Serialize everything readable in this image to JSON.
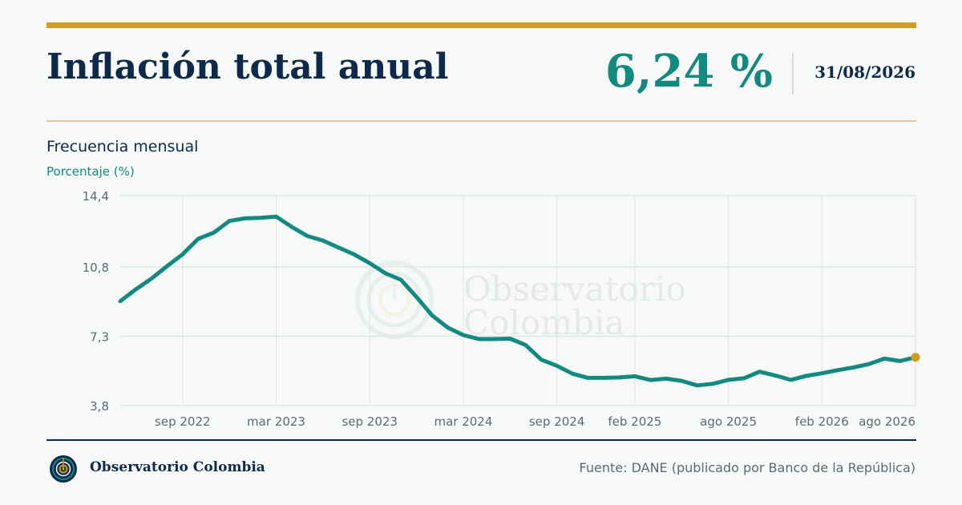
{
  "header": {
    "title": "Inflación total anual",
    "value": "6,24 %",
    "date": "31/08/2026"
  },
  "colors": {
    "gold": "#d19e1e",
    "teal": "#138a80",
    "navy": "#0d2a4a",
    "grid": "#dfe5e6",
    "tick": "#5c6a75"
  },
  "chart_data": {
    "type": "line",
    "subtitle": "Frecuencia mensual",
    "ylabel": "Porcentaje (%)",
    "ylim": [
      3.8,
      14.4
    ],
    "y_ticks": [
      "14,4",
      "10,8",
      "7,3",
      "3,8"
    ],
    "y_tick_values": [
      14.4,
      10.8,
      7.3,
      3.8
    ],
    "x_ticks": [
      "sep 2022",
      "mar 2023",
      "sep 2023",
      "mar 2024",
      "sep 2024",
      "feb 2025",
      "ago 2025",
      "feb 2026",
      "ago 2026"
    ],
    "x_tick_months": [
      4,
      10,
      16,
      22,
      28,
      33,
      39,
      45,
      51
    ],
    "x_months": [
      "may 2022",
      "jun 2022",
      "jul 2022",
      "ago 2022",
      "sep 2022",
      "oct 2022",
      "nov 2022",
      "dic 2022",
      "ene 2023",
      "feb 2023",
      "mar 2023",
      "abr 2023",
      "may 2023",
      "jun 2023",
      "jul 2023",
      "ago 2023",
      "sep 2023",
      "oct 2023",
      "nov 2023",
      "dic 2023",
      "ene 2024",
      "feb 2024",
      "mar 2024",
      "abr 2024",
      "may 2024",
      "jun 2024",
      "jul 2024",
      "ago 2024",
      "sep 2024",
      "oct 2024",
      "nov 2024",
      "dic 2024",
      "ene 2025",
      "feb 2025",
      "mar 2025",
      "abr 2025",
      "may 2025",
      "jun 2025",
      "jul 2025",
      "ago 2025",
      "sep 2025",
      "oct 2025",
      "nov 2025",
      "dic 2025",
      "ene 2026",
      "feb 2026",
      "mar 2026",
      "abr 2026",
      "may 2026",
      "jun 2026",
      "jul 2026",
      "ago 2026"
    ],
    "values": [
      9.07,
      9.67,
      10.21,
      10.84,
      11.44,
      12.22,
      12.53,
      13.12,
      13.25,
      13.28,
      13.34,
      12.82,
      12.36,
      12.13,
      11.78,
      11.43,
      10.99,
      10.48,
      10.15,
      9.28,
      8.35,
      7.74,
      7.36,
      7.16,
      7.16,
      7.18,
      6.86,
      6.12,
      5.81,
      5.41,
      5.2,
      5.2,
      5.22,
      5.28,
      5.09,
      5.16,
      5.05,
      4.82,
      4.9,
      5.1,
      5.18,
      5.51,
      5.32,
      5.1,
      5.3,
      5.43,
      5.59,
      5.72,
      5.89,
      6.17,
      6.05,
      6.24
    ],
    "grid": "on"
  },
  "footer": {
    "org": "Observatorio Colombia",
    "source": "Fuente: DANE (publicado por Banco de la República)"
  }
}
